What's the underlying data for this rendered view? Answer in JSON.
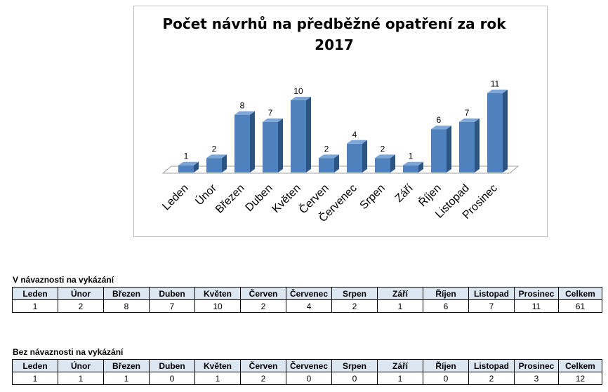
{
  "chart_data": {
    "type": "bar",
    "title_lines": [
      "Počet návrhů na předběžné opatření za rok",
      "2017"
    ],
    "categories": [
      "Leden",
      "Únor",
      "Březen",
      "Duben",
      "Květen",
      "Červen",
      "Červenec",
      "Srpen",
      "Září",
      "Říjen",
      "Listopad",
      "Prosinec"
    ],
    "values": [
      1,
      2,
      8,
      7,
      10,
      2,
      4,
      2,
      1,
      6,
      7,
      11
    ],
    "ylim": [
      0,
      11
    ],
    "grid": false,
    "legend": "none",
    "bar_color": "#4f81bd",
    "bar_side_color": "#2e5486",
    "bar_top_color": "#7fa6d9",
    "floor_color": "#ffffff"
  },
  "tables": [
    {
      "title": "V návaznosti na vykázání",
      "headers": [
        "Leden",
        "Únor",
        "Březen",
        "Duben",
        "Květen",
        "Červen",
        "Červenec",
        "Srpen",
        "Září",
        "Říjen",
        "Listopad",
        "Prosinec",
        "Celkem"
      ],
      "values": [
        "1",
        "2",
        "8",
        "7",
        "10",
        "2",
        "4",
        "2",
        "1",
        "6",
        "7",
        "11",
        "61"
      ]
    },
    {
      "title": "Bez návaznosti na vykázání",
      "headers": [
        "Leden",
        "Únor",
        "Březen",
        "Duben",
        "Květen",
        "Červen",
        "Červenec",
        "Srpen",
        "Září",
        "Říjen",
        "Listopad",
        "Prosinec",
        "Celkem"
      ],
      "values": [
        "1",
        "1",
        "1",
        "0",
        "1",
        "2",
        "0",
        "0",
        "1",
        "0",
        "2",
        "3",
        "12"
      ]
    }
  ],
  "colors": {
    "header_bg": "#dce6f1",
    "border": "#000000"
  }
}
